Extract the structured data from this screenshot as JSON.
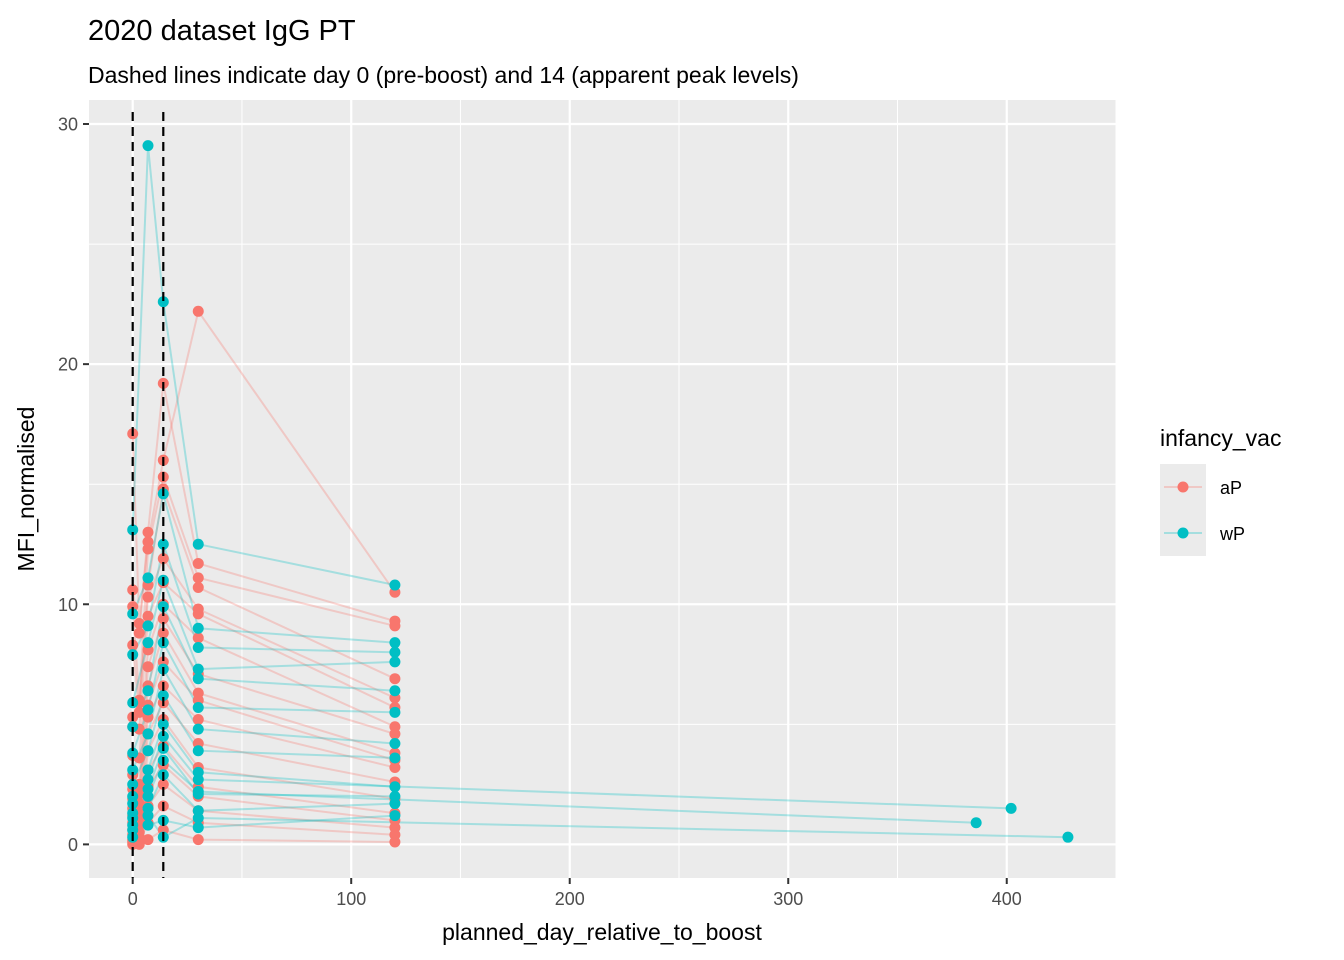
{
  "chart_data": {
    "type": "line",
    "title": "2020 dataset IgG PT",
    "subtitle": "Dashed lines indicate day 0 (pre-boost) and 14 (apparent peak levels)",
    "xlabel": "planned_day_relative_to_boost",
    "ylabel": "MFI_normalised",
    "xlim": [
      -20,
      450
    ],
    "ylim": [
      -1.4,
      31
    ],
    "x_ticks": [
      0,
      100,
      200,
      300,
      400
    ],
    "x_tick_labels": [
      "0",
      "100",
      "200",
      "300",
      "400"
    ],
    "y_ticks": [
      0,
      10,
      20,
      30
    ],
    "y_tick_labels": [
      "0",
      "10",
      "20",
      "30"
    ],
    "grid": true,
    "reference_lines": [
      {
        "x": 0,
        "style": "dashed",
        "label": "day 0 (pre-boost)"
      },
      {
        "x": 14,
        "style": "dashed",
        "label": "day 14 (apparent peak levels)"
      }
    ],
    "legend": {
      "title": "infancy_vac",
      "position": "right",
      "entries": [
        {
          "label": "aP",
          "color": "#F8766D"
        },
        {
          "label": "wP",
          "color": "#00BFC4"
        }
      ]
    },
    "series": [
      {
        "name": "aP",
        "color": "#F8766D",
        "subjects": [
          {
            "x": [
              0,
              3,
              7,
              14,
              30,
              120
            ],
            "y": [
              17.1,
              9.2,
              12.6,
              16.0,
              22.2,
              10.5
            ]
          },
          {
            "x": [
              0,
              3,
              7,
              14,
              30,
              120
            ],
            "y": [
              10.6,
              8.8,
              13.0,
              19.2,
              11.7,
              9.3
            ]
          },
          {
            "x": [
              0,
              3,
              7,
              14,
              30,
              120
            ],
            "y": [
              9.9,
              6.0,
              12.3,
              15.3,
              11.1,
              9.1
            ]
          },
          {
            "x": [
              0,
              3,
              7,
              14,
              30,
              120
            ],
            "y": [
              8.3,
              5.5,
              10.8,
              14.8,
              10.7,
              6.9
            ]
          },
          {
            "x": [
              0,
              3,
              7,
              14,
              30,
              120
            ],
            "y": [
              5.3,
              5.9,
              10.3,
              11.9,
              9.8,
              6.1
            ]
          },
          {
            "x": [
              0,
              3,
              7,
              14,
              30,
              120
            ],
            "y": [
              4.9,
              4.8,
              9.5,
              10.9,
              9.6,
              5.7
            ]
          },
          {
            "x": [
              0,
              3,
              7,
              14,
              30,
              120
            ],
            "y": [
              3.7,
              3.6,
              8.1,
              10.0,
              8.6,
              4.9
            ]
          },
          {
            "x": [
              0,
              3,
              7,
              14,
              30,
              120
            ],
            "y": [
              2.9,
              2.5,
              7.4,
              9.4,
              7.1,
              4.6
            ]
          },
          {
            "x": [
              0,
              3,
              7,
              14,
              30,
              120
            ],
            "y": [
              2.3,
              2.1,
              6.6,
              8.8,
              6.3,
              3.8
            ]
          },
          {
            "x": [
              0,
              3,
              7,
              14,
              30,
              120
            ],
            "y": [
              1.9,
              1.7,
              5.8,
              7.6,
              6.0,
              3.5
            ]
          },
          {
            "x": [
              0,
              3,
              7,
              14,
              30,
              120
            ],
            "y": [
              1.5,
              1.3,
              5.3,
              6.6,
              5.2,
              3.2
            ]
          },
          {
            "x": [
              0,
              3,
              7,
              14,
              30,
              120
            ],
            "y": [
              1.2,
              1.0,
              4.6,
              5.9,
              4.2,
              2.6
            ]
          },
          {
            "x": [
              0,
              3,
              7,
              14,
              30,
              120
            ],
            "y": [
              0.9,
              0.8,
              3.9,
              5.2,
              3.2,
              1.9
            ]
          },
          {
            "x": [
              0,
              3,
              7,
              14,
              30,
              120
            ],
            "y": [
              0.6,
              0.5,
              3.1,
              4.1,
              2.4,
              1.3
            ]
          },
          {
            "x": [
              0,
              3,
              7,
              14,
              30,
              120
            ],
            "y": [
              0.4,
              0.3,
              2.4,
              3.3,
              2.0,
              1.0
            ]
          },
          {
            "x": [
              0,
              3,
              7,
              14,
              30,
              120
            ],
            "y": [
              0.2,
              0.2,
              1.6,
              2.5,
              1.4,
              0.7
            ]
          },
          {
            "x": [
              0,
              3,
              7,
              14,
              30,
              120
            ],
            "y": [
              0.1,
              0.1,
              0.9,
              1.6,
              0.9,
              0.4
            ]
          },
          {
            "x": [
              0,
              3,
              7,
              14,
              30,
              120
            ],
            "y": [
              0.0,
              0.0,
              0.2,
              0.6,
              0.2,
              0.1
            ]
          }
        ]
      },
      {
        "name": "wP",
        "color": "#00BFC4",
        "subjects": [
          {
            "x": [
              0,
              7,
              14,
              30,
              120
            ],
            "y": [
              13.1,
              29.1,
              22.6,
              12.5,
              10.8
            ]
          },
          {
            "x": [
              0,
              7,
              14,
              30,
              120
            ],
            "y": [
              9.6,
              11.1,
              14.6,
              9.0,
              8.4
            ]
          },
          {
            "x": [
              0,
              7,
              14,
              30,
              120
            ],
            "y": [
              7.9,
              9.1,
              12.5,
              8.2,
              8.0
            ]
          },
          {
            "x": [
              0,
              7,
              14,
              30,
              120
            ],
            "y": [
              5.9,
              8.4,
              11.0,
              7.3,
              7.6
            ]
          },
          {
            "x": [
              0,
              7,
              14,
              30,
              120
            ],
            "y": [
              4.9,
              6.4,
              9.9,
              6.9,
              6.4
            ]
          },
          {
            "x": [
              0,
              7,
              14,
              30,
              120
            ],
            "y": [
              3.8,
              5.6,
              8.4,
              5.7,
              5.5
            ]
          },
          {
            "x": [
              0,
              7,
              14,
              30,
              120
            ],
            "y": [
              3.1,
              4.6,
              7.3,
              4.8,
              4.2
            ]
          },
          {
            "x": [
              0,
              7,
              14,
              30,
              120
            ],
            "y": [
              2.5,
              3.9,
              6.2,
              3.9,
              3.6
            ]
          },
          {
            "x": [
              0,
              7,
              14,
              30,
              120
            ],
            "y": [
              1.7,
              3.1,
              5.0,
              3.0,
              2.4
            ]
          },
          {
            "x": [
              0,
              7,
              14,
              30,
              120
            ],
            "y": [
              1.1,
              2.3,
              4.0,
              2.1,
              2.0
            ]
          },
          {
            "x": [
              0,
              7,
              14,
              30,
              120
            ],
            "y": [
              0.6,
              1.5,
              2.9,
              1.4,
              1.7
            ]
          },
          {
            "x": [
              0,
              7,
              14,
              30,
              120
            ],
            "y": [
              0.3,
              0.8,
              1.0,
              0.7,
              1.2
            ]
          },
          {
            "x": [
              0,
              7,
              14,
              30,
              386
            ],
            "y": [
              1.3,
              2.0,
              3.5,
              2.2,
              0.9
            ]
          },
          {
            "x": [
              0,
              7,
              14,
              30,
              402
            ],
            "y": [
              2.0,
              2.7,
              4.5,
              2.7,
              1.5
            ]
          },
          {
            "x": [
              0,
              7,
              14,
              30,
              428
            ],
            "y": [
              0.8,
              1.2,
              0.3,
              1.1,
              0.3
            ]
          }
        ]
      }
    ]
  }
}
